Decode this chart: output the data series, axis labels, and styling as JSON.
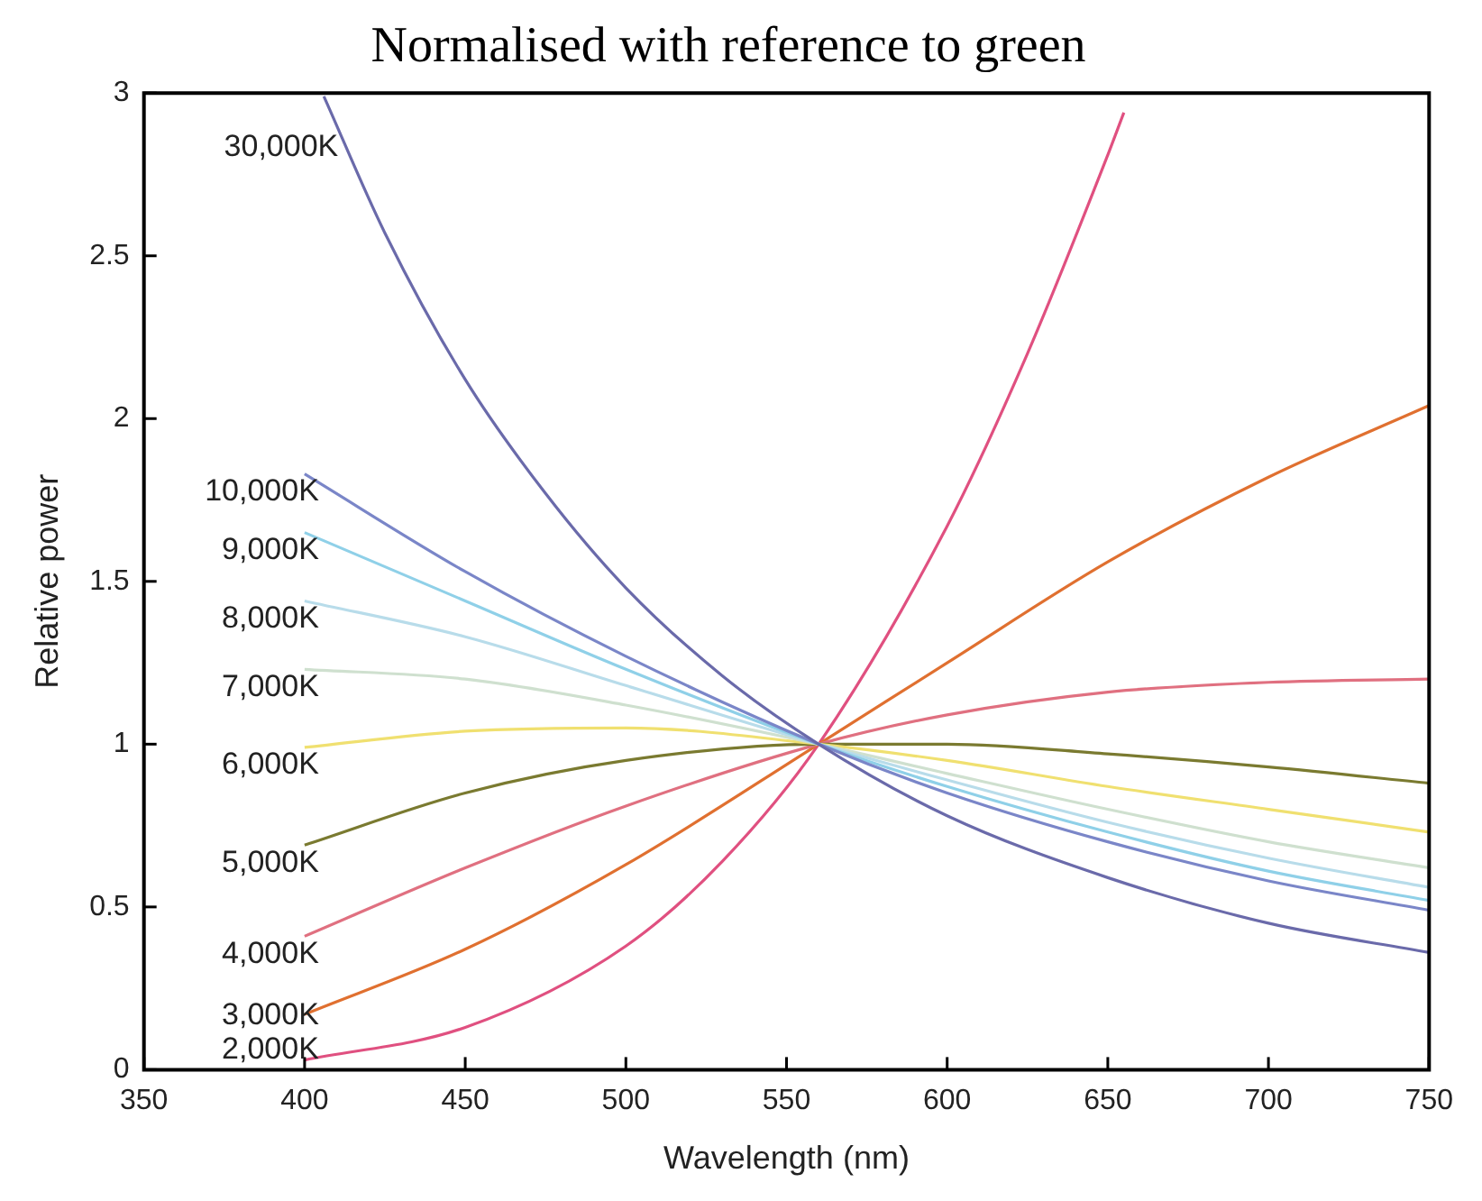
{
  "chart_data": {
    "type": "line",
    "title": "Normalised with reference to green",
    "xlabel": "Wavelength (nm)",
    "ylabel": "Relative power",
    "x": [
      400,
      450,
      500,
      560,
      600,
      650,
      700,
      750
    ],
    "xlim": [
      350,
      750
    ],
    "xticks": [
      350,
      400,
      450,
      500,
      550,
      600,
      650,
      700,
      750
    ],
    "ylim": [
      0,
      3
    ],
    "yticks": [
      0,
      0.5,
      1,
      1.5,
      2,
      2.5,
      3
    ],
    "grid": false,
    "legend": false,
    "marker": "none",
    "series": [
      {
        "name": "30,000K",
        "color": "#6a6aaa",
        "x": [
          406,
          425,
          450,
          475,
          500,
          530,
          560,
          600,
          650,
          700,
          750
        ],
        "values": [
          2.99,
          2.57,
          2.12,
          1.77,
          1.48,
          1.21,
          1,
          0.78,
          0.59,
          0.45,
          0.36
        ]
      },
      {
        "name": "10,000K",
        "color": "#7a86c8",
        "values": [
          1.83,
          1.53,
          1.27,
          1,
          0.85,
          0.7,
          0.58,
          0.49
        ]
      },
      {
        "name": "9,000K",
        "color": "#8fd0e8",
        "values": [
          1.65,
          1.44,
          1.23,
          1,
          0.87,
          0.73,
          0.61,
          0.52
        ]
      },
      {
        "name": "8,000K",
        "color": "#b8dcea",
        "values": [
          1.44,
          1.33,
          1.18,
          1,
          0.89,
          0.76,
          0.65,
          0.56
        ]
      },
      {
        "name": "7,000K",
        "color": "#cfe0cf",
        "values": [
          1.23,
          1.2,
          1.12,
          1,
          0.91,
          0.8,
          0.7,
          0.62
        ]
      },
      {
        "name": "6,000K",
        "color": "#f0e070",
        "values": [
          0.99,
          1.04,
          1.05,
          1,
          0.95,
          0.87,
          0.8,
          0.73
        ]
      },
      {
        "name": "5,000K",
        "color": "#7a7a30",
        "values": [
          0.69,
          0.85,
          0.95,
          1,
          1,
          0.97,
          0.93,
          0.88
        ]
      },
      {
        "name": "4,000K",
        "color": "#e07080",
        "values": [
          0.41,
          0.62,
          0.81,
          1,
          1.09,
          1.16,
          1.19,
          1.2
        ]
      },
      {
        "name": "3,000K",
        "color": "#e07030",
        "values": [
          0.17,
          0.37,
          0.63,
          1,
          1.25,
          1.56,
          1.82,
          2.04
        ]
      },
      {
        "name": "2,000K",
        "color": "#e05080",
        "x": [
          400,
          450,
          500,
          530,
          560,
          600,
          625,
          650,
          655
        ],
        "values": [
          0.03,
          0.13,
          0.38,
          0.64,
          1,
          1.67,
          2.2,
          2.81,
          2.94
        ]
      }
    ]
  }
}
